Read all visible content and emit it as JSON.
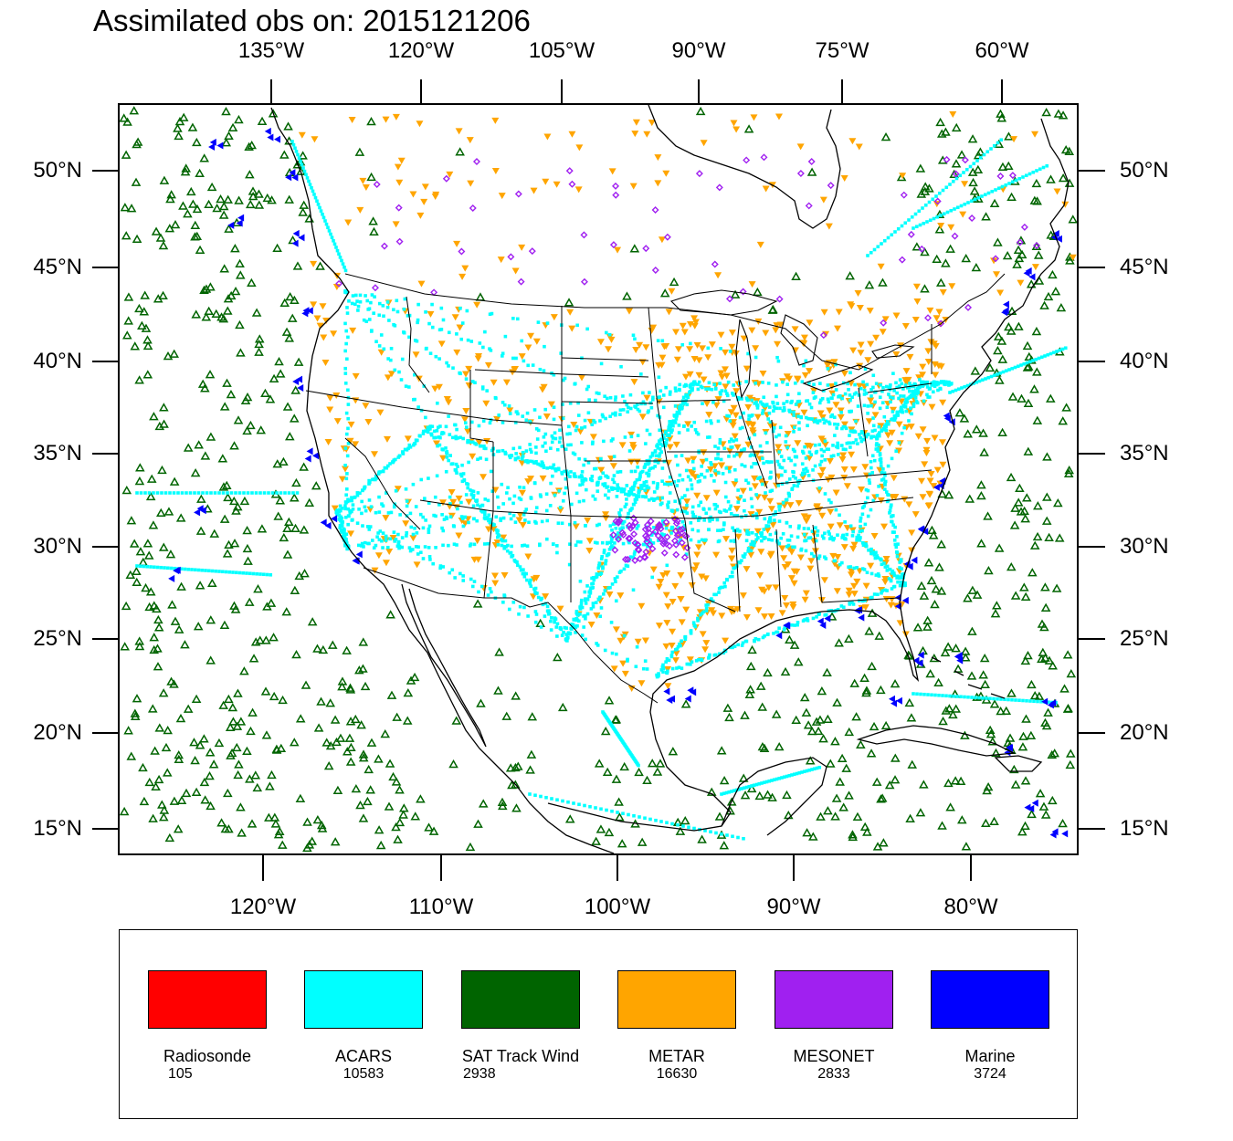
{
  "title": "Assimilated obs on: 2015121206",
  "axes": {
    "top_ticks": [
      "135°W",
      "120°W",
      "105°W",
      "90°W",
      "75°W",
      "60°W"
    ],
    "bottom_ticks": [
      "120°W",
      "110°W",
      "100°W",
      "90°W",
      "80°W"
    ],
    "left_ticks": [
      "50°N",
      "45°N",
      "40°N",
      "35°N",
      "30°N",
      "25°N",
      "20°N",
      "15°N"
    ],
    "right_ticks": [
      "50°N",
      "45°N",
      "40°N",
      "35°N",
      "30°N",
      "25°N",
      "20°N",
      "15°N"
    ]
  },
  "legend": [
    {
      "label": "Radiosonde",
      "count": "105",
      "color": "#ff0000"
    },
    {
      "label": "ACARS",
      "count": "10583",
      "color": "#00ffff"
    },
    {
      "label": "SAT Track Wind",
      "count": "2938",
      "color": "#006400"
    },
    {
      "label": "METAR",
      "count": "16630",
      "color": "#ffa500"
    },
    {
      "label": "MESONET",
      "count": "2833",
      "color": "#a020f0"
    },
    {
      "label": "Marine",
      "count": "3724",
      "color": "#0000ff"
    }
  ]
}
